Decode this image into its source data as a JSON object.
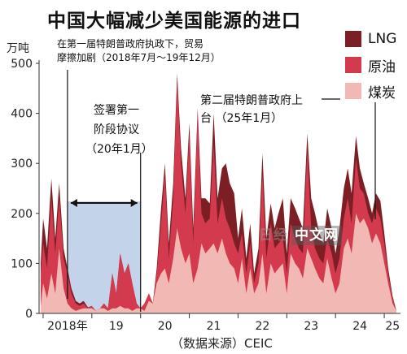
{
  "title": "中国大幅减少美国能源的进口",
  "chart_data": {
    "type": "area",
    "stacked": true,
    "title": "中国大幅减少美国能源的进口",
    "ylabel": "万吨",
    "ylim": [
      0,
      500
    ],
    "yticks": [
      0,
      100,
      200,
      300,
      400,
      500
    ],
    "xrange": [
      2017.917,
      2025.333
    ],
    "xticks": [
      {
        "label": "2018年",
        "x": 2018.5
      },
      {
        "label": "19",
        "x": 2019.5
      },
      {
        "label": "20",
        "x": 2020.5
      },
      {
        "label": "21",
        "x": 2021.5
      },
      {
        "label": "22",
        "x": 2022.5
      },
      {
        "label": "23",
        "x": 2023.5
      },
      {
        "label": "24",
        "x": 2024.5
      },
      {
        "label": "25",
        "x": 2025.17
      }
    ],
    "grid": false,
    "legend_position": "top-right",
    "series": [
      {
        "name": "煤炭",
        "color": "#f2b8b3",
        "points": [
          [
            2017.95,
            15
          ],
          [
            2018.0,
            60
          ],
          [
            2018.08,
            30
          ],
          [
            2018.17,
            80
          ],
          [
            2018.25,
            40
          ],
          [
            2018.33,
            130
          ],
          [
            2018.42,
            50
          ],
          [
            2018.5,
            20
          ],
          [
            2018.58,
            10
          ],
          [
            2018.67,
            5
          ],
          [
            2018.75,
            8
          ],
          [
            2018.83,
            10
          ],
          [
            2018.92,
            10
          ],
          [
            2019.0,
            10
          ],
          [
            2019.08,
            5
          ],
          [
            2019.17,
            10
          ],
          [
            2019.25,
            10
          ],
          [
            2019.33,
            5
          ],
          [
            2019.42,
            10
          ],
          [
            2019.5,
            10
          ],
          [
            2019.58,
            15
          ],
          [
            2019.67,
            10
          ],
          [
            2019.75,
            10
          ],
          [
            2019.83,
            5
          ],
          [
            2019.92,
            10
          ],
          [
            2020.0,
            10
          ],
          [
            2020.08,
            5
          ],
          [
            2020.17,
            25
          ],
          [
            2020.25,
            20
          ],
          [
            2020.33,
            60
          ],
          [
            2020.42,
            80
          ],
          [
            2020.5,
            90
          ],
          [
            2020.58,
            60
          ],
          [
            2020.67,
            110
          ],
          [
            2020.75,
            170
          ],
          [
            2020.83,
            130
          ],
          [
            2020.92,
            100
          ],
          [
            2021.0,
            120
          ],
          [
            2021.08,
            60
          ],
          [
            2021.17,
            90
          ],
          [
            2021.25,
            140
          ],
          [
            2021.33,
            120
          ],
          [
            2021.42,
            130
          ],
          [
            2021.5,
            140
          ],
          [
            2021.58,
            120
          ],
          [
            2021.67,
            150
          ],
          [
            2021.75,
            120
          ],
          [
            2021.83,
            100
          ],
          [
            2021.92,
            90
          ],
          [
            2022.0,
            60
          ],
          [
            2022.08,
            110
          ],
          [
            2022.17,
            40
          ],
          [
            2022.25,
            90
          ],
          [
            2022.33,
            40
          ],
          [
            2022.42,
            60
          ],
          [
            2022.5,
            120
          ],
          [
            2022.58,
            40
          ],
          [
            2022.67,
            100
          ],
          [
            2022.75,
            80
          ],
          [
            2022.83,
            90
          ],
          [
            2022.92,
            100
          ],
          [
            2023.0,
            40
          ],
          [
            2023.08,
            120
          ],
          [
            2023.17,
            100
          ],
          [
            2023.25,
            90
          ],
          [
            2023.33,
            70
          ],
          [
            2023.42,
            130
          ],
          [
            2023.5,
            110
          ],
          [
            2023.58,
            90
          ],
          [
            2023.67,
            70
          ],
          [
            2023.75,
            60
          ],
          [
            2023.83,
            110
          ],
          [
            2023.92,
            70
          ],
          [
            2024.0,
            40
          ],
          [
            2024.08,
            60
          ],
          [
            2024.17,
            130
          ],
          [
            2024.25,
            150
          ],
          [
            2024.33,
            120
          ],
          [
            2024.42,
            200
          ],
          [
            2024.5,
            180
          ],
          [
            2024.58,
            190
          ],
          [
            2024.67,
            170
          ],
          [
            2024.75,
            140
          ],
          [
            2024.83,
            160
          ],
          [
            2024.92,
            140
          ],
          [
            2025.0,
            100
          ],
          [
            2025.08,
            60
          ],
          [
            2025.17,
            20
          ],
          [
            2025.25,
            5
          ]
        ]
      },
      {
        "name": "原油",
        "color": "#d33a4d",
        "points": [
          [
            2017.95,
            80
          ],
          [
            2018.0,
            140
          ],
          [
            2018.08,
            90
          ],
          [
            2018.17,
            230
          ],
          [
            2018.25,
            120
          ],
          [
            2018.33,
            230
          ],
          [
            2018.42,
            110
          ],
          [
            2018.5,
            80
          ],
          [
            2018.58,
            40
          ],
          [
            2018.67,
            20
          ],
          [
            2018.75,
            15
          ],
          [
            2018.83,
            20
          ],
          [
            2018.92,
            10
          ],
          [
            2019.0,
            15
          ],
          [
            2019.08,
            5
          ],
          [
            2019.17,
            10
          ],
          [
            2019.25,
            20
          ],
          [
            2019.33,
            10
          ],
          [
            2019.42,
            80
          ],
          [
            2019.5,
            40
          ],
          [
            2019.58,
            120
          ],
          [
            2019.67,
            80
          ],
          [
            2019.75,
            100
          ],
          [
            2019.83,
            60
          ],
          [
            2019.92,
            20
          ],
          [
            2020.0,
            10
          ],
          [
            2020.08,
            20
          ],
          [
            2020.17,
            40
          ],
          [
            2020.25,
            20
          ],
          [
            2020.33,
            80
          ],
          [
            2020.42,
            180
          ],
          [
            2020.5,
            280
          ],
          [
            2020.58,
            110
          ],
          [
            2020.67,
            230
          ],
          [
            2020.75,
            470
          ],
          [
            2020.83,
            300
          ],
          [
            2020.92,
            200
          ],
          [
            2021.0,
            360
          ],
          [
            2021.08,
            140
          ],
          [
            2021.17,
            400
          ],
          [
            2021.25,
            200
          ],
          [
            2021.33,
            180
          ],
          [
            2021.42,
            190
          ],
          [
            2021.5,
            340
          ],
          [
            2021.58,
            180
          ],
          [
            2021.67,
            230
          ],
          [
            2021.75,
            190
          ],
          [
            2021.83,
            170
          ],
          [
            2021.92,
            140
          ],
          [
            2022.0,
            120
          ],
          [
            2022.08,
            160
          ],
          [
            2022.17,
            80
          ],
          [
            2022.25,
            140
          ],
          [
            2022.33,
            60
          ],
          [
            2022.42,
            100
          ],
          [
            2022.5,
            280
          ],
          [
            2022.58,
            110
          ],
          [
            2022.67,
            180
          ],
          [
            2022.75,
            130
          ],
          [
            2022.83,
            140
          ],
          [
            2022.92,
            150
          ],
          [
            2023.0,
            80
          ],
          [
            2023.08,
            180
          ],
          [
            2023.17,
            150
          ],
          [
            2023.25,
            130
          ],
          [
            2023.33,
            120
          ],
          [
            2023.42,
            330
          ],
          [
            2023.5,
            170
          ],
          [
            2023.58,
            130
          ],
          [
            2023.67,
            110
          ],
          [
            2023.75,
            100
          ],
          [
            2023.83,
            150
          ],
          [
            2023.92,
            120
          ],
          [
            2024.0,
            80
          ],
          [
            2024.08,
            110
          ],
          [
            2024.17,
            190
          ],
          [
            2024.25,
            230
          ],
          [
            2024.33,
            180
          ],
          [
            2024.42,
            310
          ],
          [
            2024.5,
            250
          ],
          [
            2024.58,
            240
          ],
          [
            2024.67,
            200
          ],
          [
            2024.75,
            180
          ],
          [
            2024.83,
            210
          ],
          [
            2024.92,
            190
          ],
          [
            2025.0,
            140
          ],
          [
            2025.08,
            80
          ],
          [
            2025.17,
            30
          ],
          [
            2025.25,
            5
          ]
        ]
      },
      {
        "name": "LNG",
        "color": "#7b1f24",
        "points": [
          [
            2017.95,
            100
          ],
          [
            2018.0,
            190
          ],
          [
            2018.08,
            130
          ],
          [
            2018.17,
            270
          ],
          [
            2018.25,
            150
          ],
          [
            2018.33,
            260
          ],
          [
            2018.42,
            130
          ],
          [
            2018.5,
            90
          ],
          [
            2018.58,
            50
          ],
          [
            2018.67,
            25
          ],
          [
            2018.75,
            20
          ],
          [
            2018.83,
            25
          ],
          [
            2018.92,
            12
          ],
          [
            2019.0,
            15
          ],
          [
            2019.08,
            5
          ],
          [
            2019.17,
            10
          ],
          [
            2019.25,
            20
          ],
          [
            2019.33,
            10
          ],
          [
            2019.42,
            80
          ],
          [
            2019.5,
            40
          ],
          [
            2019.58,
            120
          ],
          [
            2019.67,
            80
          ],
          [
            2019.75,
            100
          ],
          [
            2019.83,
            60
          ],
          [
            2019.92,
            20
          ],
          [
            2020.0,
            10
          ],
          [
            2020.08,
            20
          ],
          [
            2020.17,
            40
          ],
          [
            2020.25,
            20
          ],
          [
            2020.33,
            90
          ],
          [
            2020.42,
            210
          ],
          [
            2020.5,
            300
          ],
          [
            2020.58,
            140
          ],
          [
            2020.67,
            260
          ],
          [
            2020.75,
            480
          ],
          [
            2020.83,
            330
          ],
          [
            2020.92,
            230
          ],
          [
            2021.0,
            380
          ],
          [
            2021.08,
            170
          ],
          [
            2021.17,
            410
          ],
          [
            2021.25,
            230
          ],
          [
            2021.33,
            230
          ],
          [
            2021.42,
            220
          ],
          [
            2021.5,
            400
          ],
          [
            2021.58,
            230
          ],
          [
            2021.67,
            290
          ],
          [
            2021.75,
            300
          ],
          [
            2021.83,
            260
          ],
          [
            2021.92,
            240
          ],
          [
            2022.0,
            150
          ],
          [
            2022.08,
            210
          ],
          [
            2022.17,
            110
          ],
          [
            2022.25,
            180
          ],
          [
            2022.33,
            80
          ],
          [
            2022.42,
            130
          ],
          [
            2022.5,
            320
          ],
          [
            2022.58,
            150
          ],
          [
            2022.67,
            220
          ],
          [
            2022.75,
            170
          ],
          [
            2022.83,
            200
          ],
          [
            2022.92,
            230
          ],
          [
            2023.0,
            120
          ],
          [
            2023.08,
            230
          ],
          [
            2023.17,
            210
          ],
          [
            2023.25,
            190
          ],
          [
            2023.33,
            170
          ],
          [
            2023.42,
            360
          ],
          [
            2023.5,
            230
          ],
          [
            2023.58,
            200
          ],
          [
            2023.67,
            160
          ],
          [
            2023.75,
            140
          ],
          [
            2023.83,
            210
          ],
          [
            2023.92,
            170
          ],
          [
            2024.0,
            120
          ],
          [
            2024.08,
            170
          ],
          [
            2024.17,
            250
          ],
          [
            2024.25,
            290
          ],
          [
            2024.33,
            240
          ],
          [
            2024.42,
            355
          ],
          [
            2024.5,
            290
          ],
          [
            2024.58,
            260
          ],
          [
            2024.67,
            230
          ],
          [
            2024.75,
            200
          ],
          [
            2024.83,
            240
          ],
          [
            2024.92,
            225
          ],
          [
            2025.0,
            160
          ],
          [
            2025.08,
            90
          ],
          [
            2025.17,
            35
          ],
          [
            2025.25,
            5
          ]
        ]
      }
    ],
    "shaded_period": {
      "from": 2018.5,
      "to": 2020.0
    },
    "annotations": [
      {
        "id": "first-admin",
        "lines": [
          "在第一届特朗普政府执政下，贸易",
          "摩擦加剧（2018年7月～19年12月）"
        ],
        "x": 2018.5
      },
      {
        "id": "phase-one",
        "lines": [
          "签署第一",
          "阶段协议",
          "（20年1月）"
        ],
        "x": 2020.0
      },
      {
        "id": "second-admin",
        "lines": [
          "第二届特朗普政府上",
          "台 （25年1月）"
        ],
        "x": 2025.0
      }
    ]
  },
  "source": "（数据来源）CEIC",
  "watermark": {
    "text": "日经",
    "box_text": "中文网"
  }
}
